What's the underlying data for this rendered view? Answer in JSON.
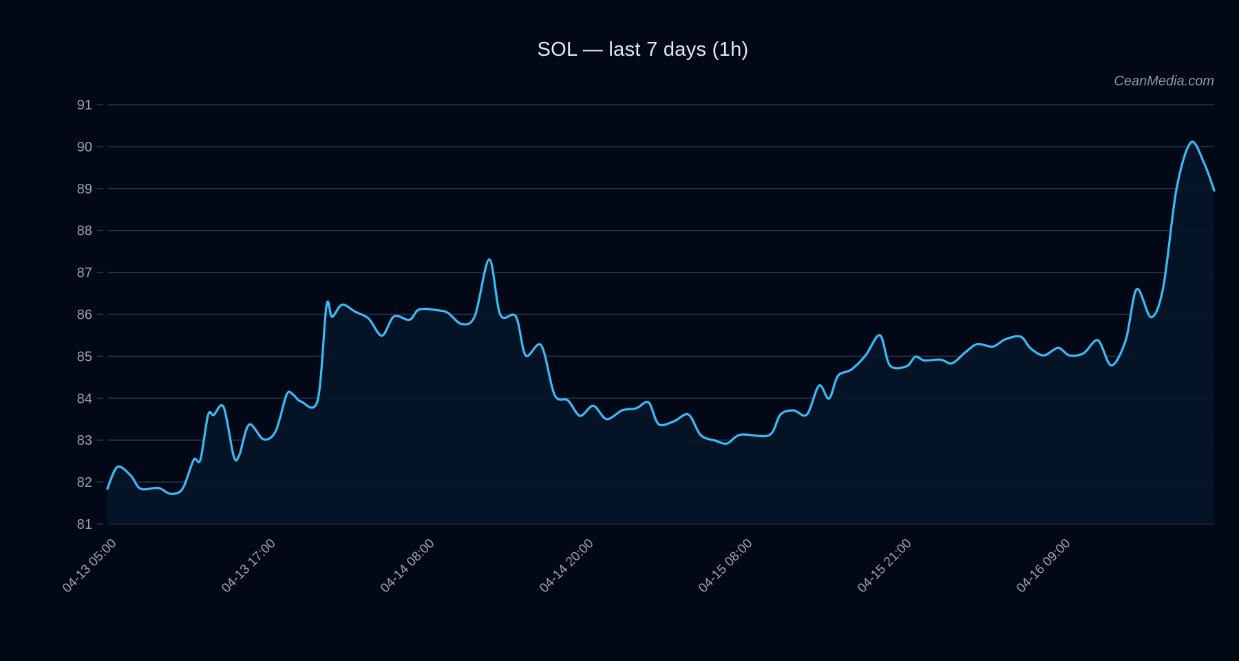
{
  "title": "SOL — last 7 days (1h)",
  "watermark": "CeanMedia.com",
  "colors": {
    "background": "#030817",
    "line": "#38bdf8",
    "area_fill": "#061528",
    "grid": "#2c3443",
    "tick_text": "#9aa1ad",
    "title_text": "#e6e8ee"
  },
  "chart_data": {
    "type": "area",
    "title": "SOL — last 7 days (1h)",
    "xlabel": "",
    "ylabel": "",
    "ylim": [
      81,
      91
    ],
    "yticks": [
      81,
      82,
      83,
      84,
      85,
      86,
      87,
      88,
      89,
      90,
      91
    ],
    "xticks": [
      {
        "label": "04-13 05:00",
        "t": 0.0
      },
      {
        "label": "04-13 17:00",
        "t": 0.1437
      },
      {
        "label": "04-14 08:00",
        "t": 0.2873
      },
      {
        "label": "04-14 20:00",
        "t": 0.431
      },
      {
        "label": "04-15 08:00",
        "t": 0.5746
      },
      {
        "label": "04-15 21:00",
        "t": 0.7183
      },
      {
        "label": "04-16 09:00",
        "t": 0.8619
      }
    ],
    "grid": true,
    "legend": null,
    "series": [
      {
        "name": "SOL",
        "points": [
          [
            0.0,
            81.84
          ],
          [
            0.009,
            82.36
          ],
          [
            0.021,
            82.16
          ],
          [
            0.03,
            81.84
          ],
          [
            0.046,
            81.86
          ],
          [
            0.057,
            81.72
          ],
          [
            0.068,
            81.84
          ],
          [
            0.078,
            82.53
          ],
          [
            0.084,
            82.53
          ],
          [
            0.091,
            83.6
          ],
          [
            0.096,
            83.6
          ],
          [
            0.105,
            83.79
          ],
          [
            0.114,
            82.63
          ],
          [
            0.119,
            82.63
          ],
          [
            0.128,
            83.37
          ],
          [
            0.141,
            83.02
          ],
          [
            0.152,
            83.21
          ],
          [
            0.162,
            84.09
          ],
          [
            0.168,
            84.08
          ],
          [
            0.175,
            83.92
          ],
          [
            0.19,
            83.95
          ],
          [
            0.198,
            86.21
          ],
          [
            0.203,
            85.94
          ],
          [
            0.212,
            86.23
          ],
          [
            0.224,
            86.06
          ],
          [
            0.236,
            85.9
          ],
          [
            0.248,
            85.49
          ],
          [
            0.259,
            85.95
          ],
          [
            0.273,
            85.87
          ],
          [
            0.282,
            86.12
          ],
          [
            0.3,
            86.09
          ],
          [
            0.308,
            86.03
          ],
          [
            0.32,
            85.77
          ],
          [
            0.332,
            85.96
          ],
          [
            0.345,
            87.31
          ],
          [
            0.355,
            85.99
          ],
          [
            0.369,
            85.95
          ],
          [
            0.378,
            85.02
          ],
          [
            0.392,
            85.26
          ],
          [
            0.404,
            84.08
          ],
          [
            0.416,
            83.95
          ],
          [
            0.427,
            83.58
          ],
          [
            0.439,
            83.82
          ],
          [
            0.451,
            83.5
          ],
          [
            0.465,
            83.71
          ],
          [
            0.478,
            83.76
          ],
          [
            0.489,
            83.9
          ],
          [
            0.498,
            83.38
          ],
          [
            0.512,
            83.45
          ],
          [
            0.525,
            83.61
          ],
          [
            0.536,
            83.12
          ],
          [
            0.549,
            82.99
          ],
          [
            0.56,
            82.92
          ],
          [
            0.572,
            83.13
          ],
          [
            0.598,
            83.12
          ],
          [
            0.608,
            83.61
          ],
          [
            0.62,
            83.71
          ],
          [
            0.632,
            83.61
          ],
          [
            0.643,
            84.3
          ],
          [
            0.652,
            83.99
          ],
          [
            0.66,
            84.53
          ],
          [
            0.672,
            84.68
          ],
          [
            0.685,
            85.02
          ],
          [
            0.698,
            85.5
          ],
          [
            0.707,
            84.78
          ],
          [
            0.722,
            84.76
          ],
          [
            0.73,
            84.99
          ],
          [
            0.738,
            84.9
          ],
          [
            0.753,
            84.92
          ],
          [
            0.763,
            84.83
          ],
          [
            0.775,
            85.09
          ],
          [
            0.786,
            85.29
          ],
          [
            0.8,
            85.23
          ],
          [
            0.811,
            85.4
          ],
          [
            0.825,
            85.47
          ],
          [
            0.834,
            85.19
          ],
          [
            0.846,
            85.02
          ],
          [
            0.859,
            85.2
          ],
          [
            0.869,
            85.02
          ],
          [
            0.882,
            85.07
          ],
          [
            0.895,
            85.38
          ],
          [
            0.907,
            84.78
          ],
          [
            0.92,
            85.38
          ],
          [
            0.93,
            86.6
          ],
          [
            0.943,
            85.93
          ],
          [
            0.954,
            86.65
          ],
          [
            0.966,
            89.0
          ],
          [
            0.979,
            90.1
          ],
          [
            0.991,
            89.6
          ],
          [
            1.0,
            88.95
          ]
        ]
      }
    ]
  }
}
